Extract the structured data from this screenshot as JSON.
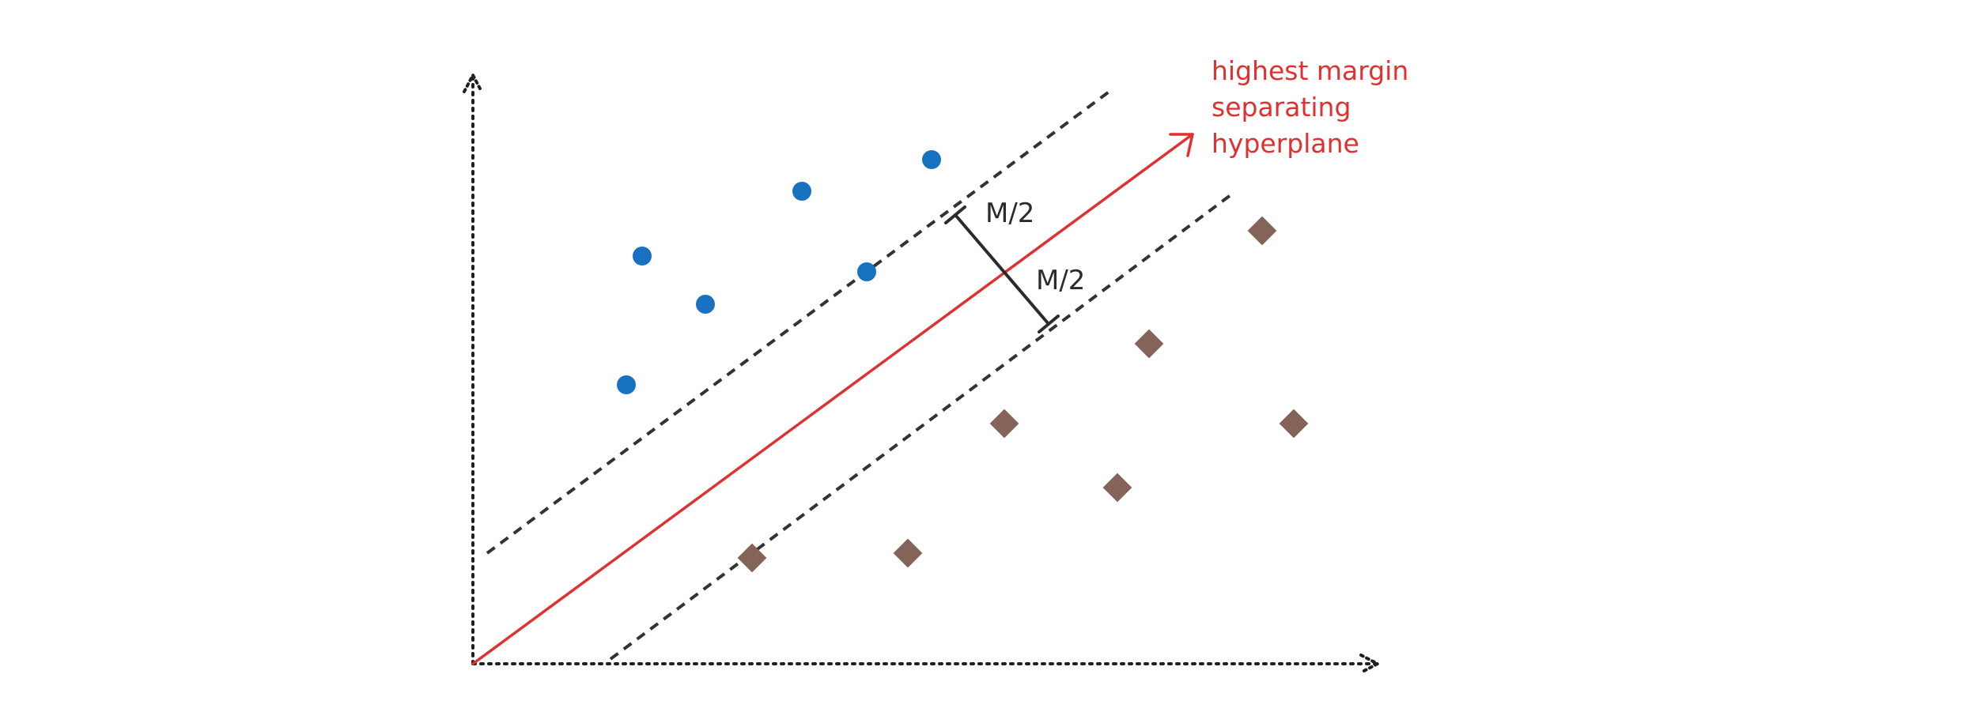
{
  "annotation": {
    "lines": [
      "highest margin",
      "separating",
      "hyperplane"
    ]
  },
  "margin_labels": {
    "upper": "M/2",
    "lower": "M/2"
  },
  "colors": {
    "background": "#ffffff",
    "axis": "#1f1f1f",
    "hyperplane": "#e03131",
    "margin_lines": "#333333",
    "margin_bar": "#2b2b2b",
    "class_circle": "#1971c2",
    "class_diamond": "#846358",
    "annotation_text": "#e03131",
    "label_text": "#2b2b2b"
  },
  "icons": {
    "class_a_marker": "filled-circle",
    "class_b_marker": "filled-diamond",
    "axis_arrowheads": "open-arrow"
  }
}
